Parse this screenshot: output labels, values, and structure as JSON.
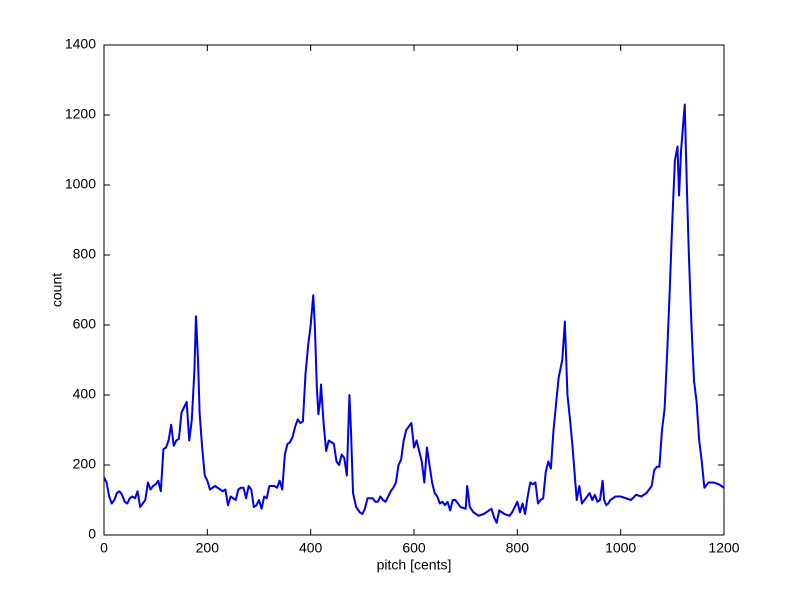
{
  "chart_data": {
    "type": "line",
    "xlabel": "pitch [cents]",
    "ylabel": "count",
    "x": [
      0,
      5,
      10,
      15,
      20,
      25,
      30,
      35,
      40,
      45,
      50,
      55,
      60,
      65,
      70,
      75,
      80,
      85,
      90,
      95,
      100,
      105,
      110,
      115,
      120,
      125,
      130,
      135,
      140,
      145,
      150,
      155,
      160,
      165,
      170,
      175,
      178,
      182,
      185,
      190,
      195,
      200,
      205,
      210,
      215,
      220,
      225,
      230,
      235,
      240,
      245,
      250,
      255,
      260,
      265,
      270,
      275,
      280,
      285,
      290,
      295,
      300,
      305,
      310,
      315,
      320,
      325,
      330,
      335,
      340,
      345,
      350,
      355,
      360,
      365,
      370,
      375,
      380,
      385,
      390,
      395,
      400,
      405,
      408,
      412,
      415,
      418,
      420,
      425,
      430,
      435,
      440,
      445,
      450,
      455,
      460,
      465,
      470,
      475,
      478,
      482,
      488,
      495,
      500,
      505,
      510,
      520,
      525,
      530,
      535,
      540,
      545,
      550,
      555,
      560,
      565,
      570,
      575,
      580,
      585,
      590,
      595,
      600,
      605,
      610,
      615,
      620,
      625,
      630,
      635,
      640,
      645,
      650,
      655,
      660,
      665,
      670,
      675,
      680,
      690,
      700,
      703,
      708,
      715,
      725,
      735,
      745,
      750,
      755,
      760,
      765,
      775,
      785,
      790,
      795,
      800,
      805,
      810,
      815,
      820,
      825,
      830,
      835,
      840,
      845,
      850,
      855,
      860,
      865,
      870,
      880,
      887,
      892,
      897,
      902,
      907,
      912,
      915,
      920,
      925,
      930,
      935,
      940,
      945,
      950,
      955,
      960,
      965,
      968,
      972,
      976,
      980,
      990,
      1000,
      1010,
      1020,
      1030,
      1040,
      1050,
      1060,
      1065,
      1070,
      1075,
      1080,
      1085,
      1090,
      1095,
      1100,
      1105,
      1110,
      1113,
      1117,
      1124,
      1128,
      1132,
      1137,
      1142,
      1147,
      1152,
      1157,
      1162,
      1170,
      1180,
      1190,
      1200
    ],
    "series": [
      {
        "color": "#0000ee",
        "values": [
          165,
          150,
          110,
          90,
          100,
          120,
          125,
          115,
          95,
          90,
          105,
          110,
          105,
          125,
          80,
          90,
          100,
          150,
          130,
          140,
          145,
          155,
          125,
          245,
          250,
          270,
          315,
          255,
          270,
          275,
          350,
          365,
          380,
          270,
          330,
          470,
          625,
          500,
          350,
          250,
          170,
          155,
          130,
          135,
          140,
          135,
          130,
          125,
          130,
          85,
          110,
          105,
          100,
          130,
          135,
          135,
          105,
          140,
          130,
          80,
          85,
          100,
          75,
          110,
          105,
          140,
          140,
          140,
          135,
          155,
          130,
          230,
          260,
          265,
          280,
          310,
          330,
          320,
          325,
          460,
          540,
          600,
          685,
          600,
          420,
          345,
          380,
          430,
          320,
          240,
          270,
          265,
          260,
          210,
          200,
          230,
          220,
          170,
          400,
          300,
          120,
          80,
          65,
          60,
          75,
          105,
          105,
          95,
          95,
          110,
          100,
          95,
          110,
          125,
          135,
          150,
          200,
          215,
          270,
          300,
          310,
          320,
          250,
          270,
          240,
          210,
          150,
          250,
          200,
          150,
          120,
          110,
          90,
          95,
          85,
          95,
          70,
          100,
          100,
          80,
          75,
          140,
          80,
          65,
          55,
          60,
          70,
          75,
          50,
          35,
          70,
          60,
          55,
          65,
          80,
          95,
          65,
          90,
          60,
          110,
          150,
          145,
          150,
          90,
          100,
          105,
          180,
          210,
          190,
          300,
          450,
          500,
          610,
          400,
          330,
          250,
          155,
          100,
          140,
          90,
          100,
          110,
          120,
          100,
          115,
          95,
          100,
          155,
          100,
          85,
          90,
          100,
          110,
          110,
          105,
          100,
          115,
          110,
          120,
          140,
          185,
          195,
          195,
          300,
          360,
          520,
          700,
          900,
          1070,
          1110,
          970,
          1100,
          1230,
          1000,
          800,
          600,
          440,
          380,
          270,
          210,
          135,
          150,
          150,
          145,
          135
        ]
      }
    ],
    "xlim": [
      0,
      1200
    ],
    "xticks": [
      0,
      200,
      400,
      600,
      800,
      1000,
      1200
    ],
    "ylim": [
      0,
      1400
    ],
    "yticks": [
      0,
      200,
      400,
      600,
      800,
      1000,
      1200,
      1400
    ],
    "grid": false
  }
}
